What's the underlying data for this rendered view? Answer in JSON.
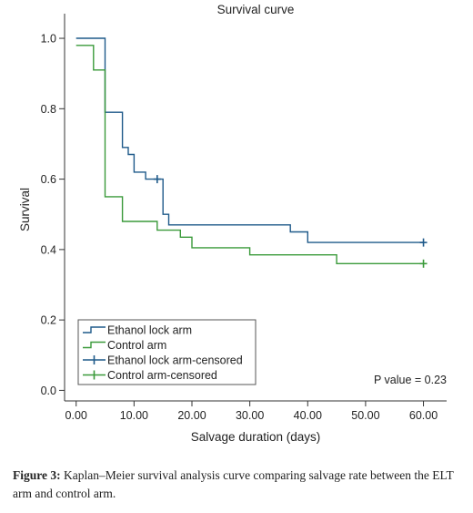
{
  "chart_data": {
    "type": "line",
    "step": true,
    "title": "Survival curve",
    "xlabel": "Salvage duration (days)",
    "ylabel": "Survival",
    "xlim": [
      -2,
      64
    ],
    "ylim": [
      -0.03,
      1.07
    ],
    "xticks": [
      0,
      10,
      20,
      30,
      40,
      50,
      60
    ],
    "xtick_labels": [
      "0.00",
      "10.00",
      "20.00",
      "30.00",
      "40.00",
      "50.00",
      "60.00"
    ],
    "yticks": [
      0.0,
      0.2,
      0.4,
      0.6,
      0.8,
      1.0
    ],
    "ytick_labels": [
      "0.0",
      "0.2",
      "0.4",
      "0.6",
      "0.8",
      "1.0"
    ],
    "grid": false,
    "legend_position": "bottom-left",
    "series": [
      {
        "name": "Ethanol lock arm",
        "color": "#1f5a8a",
        "points": [
          [
            0,
            1.0
          ],
          [
            5,
            1.0
          ],
          [
            5,
            0.79
          ],
          [
            8,
            0.79
          ],
          [
            8,
            0.69
          ],
          [
            9,
            0.69
          ],
          [
            9,
            0.67
          ],
          [
            10,
            0.67
          ],
          [
            10,
            0.62
          ],
          [
            12,
            0.62
          ],
          [
            12,
            0.6
          ],
          [
            15,
            0.6
          ],
          [
            15,
            0.5
          ],
          [
            16,
            0.5
          ],
          [
            16,
            0.47
          ],
          [
            37,
            0.47
          ],
          [
            37,
            0.45
          ],
          [
            40,
            0.45
          ],
          [
            40,
            0.42
          ],
          [
            60,
            0.42
          ]
        ]
      },
      {
        "name": "Control arm",
        "color": "#3a9a3a",
        "points": [
          [
            0,
            0.98
          ],
          [
            3,
            0.98
          ],
          [
            3,
            0.91
          ],
          [
            5,
            0.91
          ],
          [
            5,
            0.55
          ],
          [
            8,
            0.55
          ],
          [
            8,
            0.48
          ],
          [
            14,
            0.48
          ],
          [
            14,
            0.455
          ],
          [
            18,
            0.455
          ],
          [
            18,
            0.435
          ],
          [
            20,
            0.435
          ],
          [
            20,
            0.405
          ],
          [
            30,
            0.405
          ],
          [
            30,
            0.385
          ],
          [
            45,
            0.385
          ],
          [
            45,
            0.36
          ],
          [
            60,
            0.36
          ]
        ]
      }
    ],
    "censored": [
      {
        "name": "Ethanol lock arm-censored",
        "color": "#1f5a8a",
        "x": [
          14,
          60
        ],
        "y": [
          0.6,
          0.42
        ]
      },
      {
        "name": "Control arm-censored",
        "color": "#3a9a3a",
        "x": [
          60
        ],
        "y": [
          0.36
        ]
      }
    ],
    "annotation": "P value = 0.23"
  },
  "caption": {
    "label": "Figure 3:",
    "text": " Kaplan–Meier survival analysis curve comparing salvage rate between the ELT arm and control arm."
  }
}
